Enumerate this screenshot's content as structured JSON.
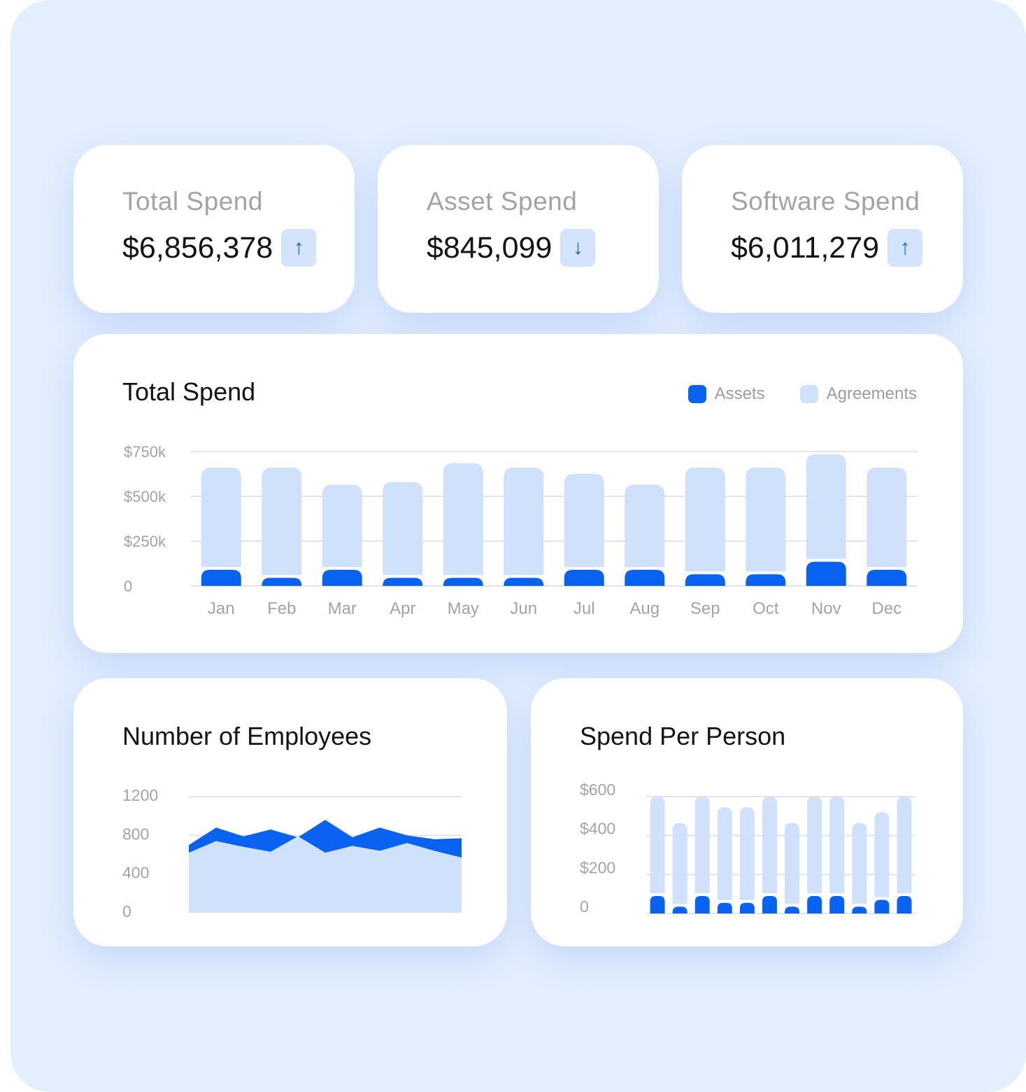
{
  "colors": {
    "assets": "#0a63f0",
    "agreements": "#d0e2fb",
    "grid": "#e3e3e3",
    "axis_text": "#a3a3a3"
  },
  "stats": [
    {
      "label": "Total Spend",
      "value": "$6,856,378",
      "trend_icon": "arrow-up-icon",
      "trend_glyph": "↑"
    },
    {
      "label": "Asset Spend",
      "value": "$845,099",
      "trend_icon": "arrow-down-icon",
      "trend_glyph": "↓"
    },
    {
      "label": "Software Spend",
      "value": "$6,011,279",
      "trend_icon": "arrow-up-icon",
      "trend_glyph": "↑"
    }
  ],
  "total_chart": {
    "title": "Total Spend",
    "legend": [
      {
        "label": "Assets"
      },
      {
        "label": "Agreements"
      }
    ]
  },
  "employees_chart": {
    "title": "Number of Employees"
  },
  "per_person_chart": {
    "title": "Spend Per Person"
  },
  "chart_data": [
    {
      "type": "bar",
      "title": "Total Spend",
      "stacked": true,
      "categories": [
        "Jan",
        "Feb",
        "Mar",
        "Apr",
        "May",
        "Jun",
        "Jul",
        "Aug",
        "Sep",
        "Oct",
        "Nov",
        "Dec"
      ],
      "series": [
        {
          "name": "Assets",
          "values": [
            90,
            45,
            90,
            45,
            45,
            45,
            90,
            90,
            65,
            65,
            135,
            90
          ]
        },
        {
          "name": "Agreements",
          "values": [
            570,
            615,
            475,
            535,
            640,
            615,
            535,
            475,
            595,
            595,
            600,
            570
          ]
        }
      ],
      "yticks": [
        "0",
        "$250k",
        "$500k",
        "$750k"
      ],
      "ylim": [
        0,
        750
      ],
      "grid": true,
      "legend_position": "top-right"
    },
    {
      "type": "area",
      "title": "Number of Employees",
      "x": [
        0,
        1,
        2,
        3,
        4,
        5,
        6,
        7,
        8,
        9,
        10
      ],
      "series": [
        {
          "values": [
            620,
            740,
            680,
            630,
            790,
            620,
            690,
            640,
            720,
            640,
            570
          ]
        },
        {
          "values": [
            700,
            880,
            790,
            860,
            780,
            960,
            780,
            880,
            800,
            760,
            770
          ]
        }
      ],
      "yticks": [
        "0",
        "400",
        "800",
        "1200"
      ],
      "ylim": [
        0,
        1200
      ],
      "grid": true
    },
    {
      "type": "bar",
      "title": "Spend Per Person",
      "stacked": true,
      "series": [
        {
          "values": [
            90,
            35,
            90,
            55,
            55,
            90,
            35,
            90,
            90,
            35,
            70,
            90
          ]
        },
        {
          "values": [
            510,
            430,
            510,
            490,
            490,
            510,
            430,
            510,
            510,
            430,
            450,
            510
          ]
        }
      ],
      "yticks": [
        "0",
        "$200",
        "$400",
        "$600"
      ],
      "ylim": [
        0,
        600
      ],
      "grid": true
    }
  ]
}
